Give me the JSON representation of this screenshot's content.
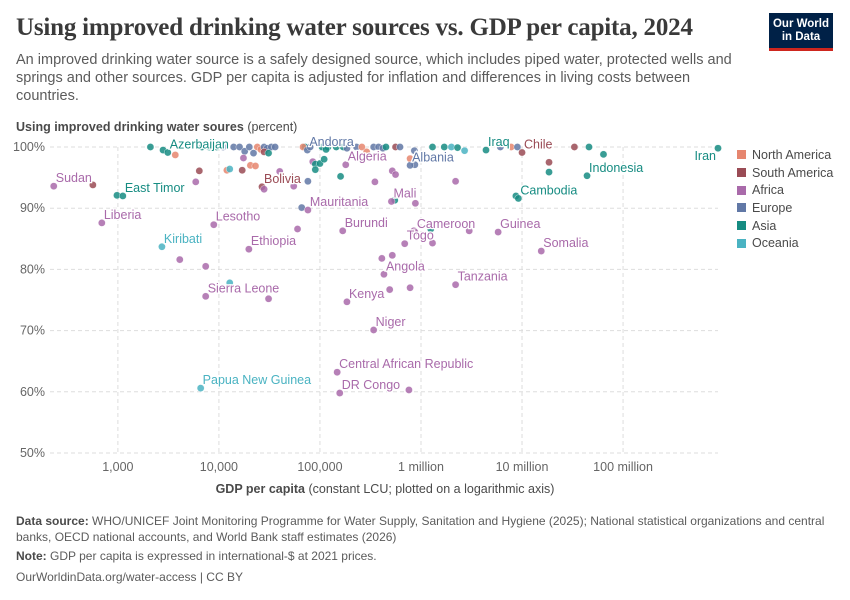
{
  "title": "Using improved drinking water sources vs. GDP per capita, 2024",
  "subtitle": "An improved drinking water source is a safely designed source, which includes piped water, protected wells and springs and other sources. GDP per capita is adjusted for inflation and differences in living costs between countries.",
  "logo": {
    "line1": "Our World",
    "line2": "in Data"
  },
  "footer": {
    "source_label": "Data source:",
    "source": "WHO/UNICEF Joint Monitoring Programme for Water Supply, Sanitation and Hygiene (2025); National statistical organizations and central banks, OECD national accounts, and World Bank staff estimates (2026)",
    "note_label": "Note:",
    "note": "GDP per capita is expressed in international-$ at 2021 prices.",
    "link": "OurWorldinData.org/water-access | CC BY"
  },
  "chart_data": {
    "type": "scatter",
    "ylabel_bold": "Using improved drinking water soures",
    "ylabel_unit": "(percent)",
    "xlabel_bold": "GDP per capita",
    "xlabel_rest": "(constant LCU; plotted on a logarithmic axis)",
    "xscale": "log",
    "xlim": [
      213,
      870000000
    ],
    "ylim": [
      50,
      100
    ],
    "xticks": [
      {
        "v": 1000,
        "label": "1,000"
      },
      {
        "v": 10000,
        "label": "10,000"
      },
      {
        "v": 100000,
        "label": "100,000"
      },
      {
        "v": 1000000,
        "label": "1 million"
      },
      {
        "v": 10000000,
        "label": "10 million"
      },
      {
        "v": 100000000,
        "label": "100 million"
      }
    ],
    "yticks": [
      {
        "v": 50,
        "label": "50%"
      },
      {
        "v": 60,
        "label": "60%"
      },
      {
        "v": 70,
        "label": "70%"
      },
      {
        "v": 80,
        "label": "80%"
      },
      {
        "v": 90,
        "label": "90%"
      },
      {
        "v": 100,
        "label": "100%"
      }
    ],
    "legend": [
      {
        "name": "North America",
        "color": "#e6866f"
      },
      {
        "name": "South America",
        "color": "#9a4b55"
      },
      {
        "name": "Africa",
        "color": "#a96aaa"
      },
      {
        "name": "Europe",
        "color": "#6178a6"
      },
      {
        "name": "Asia",
        "color": "#168c82"
      },
      {
        "name": "Oceania",
        "color": "#4ab3c2"
      }
    ],
    "points": [
      {
        "x": 232,
        "y": 93.6,
        "r": "Africa",
        "label": "Sudan"
      },
      {
        "x": 566,
        "y": 93.8,
        "r": "South America"
      },
      {
        "x": 980,
        "y": 92.1,
        "r": "Asia"
      },
      {
        "x": 1120,
        "y": 92.0,
        "r": "Asia",
        "label": "East Timor"
      },
      {
        "x": 694,
        "y": 87.6,
        "r": "Africa",
        "label": "Liberia"
      },
      {
        "x": 2730,
        "y": 83.7,
        "r": "Oceania",
        "label": "Kiribati"
      },
      {
        "x": 2100,
        "y": 100,
        "r": "Asia"
      },
      {
        "x": 2800,
        "y": 99.5,
        "r": "Asia"
      },
      {
        "x": 3120,
        "y": 99.1,
        "r": "Asia",
        "label": "Azerbaijan"
      },
      {
        "x": 3700,
        "y": 98.7,
        "r": "North America"
      },
      {
        "x": 4100,
        "y": 81.6,
        "r": "Africa"
      },
      {
        "x": 7400,
        "y": 80.5,
        "r": "Africa"
      },
      {
        "x": 5900,
        "y": 94.3,
        "r": "Africa"
      },
      {
        "x": 6400,
        "y": 96.1,
        "r": "South America"
      },
      {
        "x": 6800,
        "y": 100,
        "r": "Asia"
      },
      {
        "x": 8000,
        "y": 100,
        "r": "Asia"
      },
      {
        "x": 9500,
        "y": 100,
        "r": "Asia"
      },
      {
        "x": 11000,
        "y": 100,
        "r": "Europe"
      },
      {
        "x": 12000,
        "y": 96.2,
        "r": "North America"
      },
      {
        "x": 12800,
        "y": 96.4,
        "r": "Oceania"
      },
      {
        "x": 8900,
        "y": 87.3,
        "r": "Africa",
        "label": "Lesotho"
      },
      {
        "x": 19800,
        "y": 83.3,
        "r": "Africa",
        "label": "Ethiopia"
      },
      {
        "x": 7400,
        "y": 75.6,
        "r": "Africa",
        "label": "Sierra Leone"
      },
      {
        "x": 12800,
        "y": 77.8,
        "r": "Oceania"
      },
      {
        "x": 31000,
        "y": 75.2,
        "r": "Africa"
      },
      {
        "x": 14000,
        "y": 100,
        "r": "Europe"
      },
      {
        "x": 16000,
        "y": 100,
        "r": "Europe"
      },
      {
        "x": 18000,
        "y": 99.3,
        "r": "Europe"
      },
      {
        "x": 20000,
        "y": 100,
        "r": "Europe"
      },
      {
        "x": 22000,
        "y": 99.0,
        "r": "Europe"
      },
      {
        "x": 24000,
        "y": 100,
        "r": "North America"
      },
      {
        "x": 26000,
        "y": 99.6,
        "r": "North America"
      },
      {
        "x": 28000,
        "y": 100,
        "r": "Europe"
      },
      {
        "x": 30000,
        "y": 99.8,
        "r": "Europe"
      },
      {
        "x": 33000,
        "y": 100,
        "r": "Europe"
      },
      {
        "x": 36000,
        "y": 100,
        "r": "Europe"
      },
      {
        "x": 17500,
        "y": 98.2,
        "r": "Africa"
      },
      {
        "x": 20500,
        "y": 97.0,
        "r": "North America"
      },
      {
        "x": 17000,
        "y": 96.2,
        "r": "South America"
      },
      {
        "x": 23000,
        "y": 96.9,
        "r": "North America"
      },
      {
        "x": 28000,
        "y": 99.2,
        "r": "South America"
      },
      {
        "x": 31000,
        "y": 99.0,
        "r": "Asia"
      },
      {
        "x": 40000,
        "y": 96.0,
        "r": "Africa"
      },
      {
        "x": 26700,
        "y": 93.5,
        "r": "South America",
        "label": "Bolivia"
      },
      {
        "x": 28000,
        "y": 93.1,
        "r": "Africa"
      },
      {
        "x": 55000,
        "y": 93.6,
        "r": "Africa"
      },
      {
        "x": 60000,
        "y": 86.6,
        "r": "Africa"
      },
      {
        "x": 71000,
        "y": 100,
        "r": "Asia"
      },
      {
        "x": 68000,
        "y": 100,
        "r": "North America"
      },
      {
        "x": 75000,
        "y": 99.5,
        "r": "Europe",
        "label": "Andorra"
      },
      {
        "x": 80000,
        "y": 100,
        "r": "Europe"
      },
      {
        "x": 85000,
        "y": 97.6,
        "r": "Africa"
      },
      {
        "x": 90000,
        "y": 97.2,
        "r": "Asia"
      },
      {
        "x": 90000,
        "y": 96.3,
        "r": "Asia"
      },
      {
        "x": 100000,
        "y": 97.3,
        "r": "Asia"
      },
      {
        "x": 105000,
        "y": 100,
        "r": "Asia"
      },
      {
        "x": 120000,
        "y": 100,
        "r": "Asia"
      },
      {
        "x": 110000,
        "y": 98.0,
        "r": "Asia"
      },
      {
        "x": 115000,
        "y": 99.6,
        "r": "Asia"
      },
      {
        "x": 76000,
        "y": 94.4,
        "r": "Europe"
      },
      {
        "x": 66000,
        "y": 90.1,
        "r": "Europe"
      },
      {
        "x": 76000,
        "y": 89.7,
        "r": "Africa",
        "label": "Mauritania"
      },
      {
        "x": 160000,
        "y": 95.2,
        "r": "Asia"
      },
      {
        "x": 145000,
        "y": 100,
        "r": "Asia"
      },
      {
        "x": 170000,
        "y": 100,
        "r": "Asia"
      },
      {
        "x": 185000,
        "y": 99.8,
        "r": "Europe"
      },
      {
        "x": 180000,
        "y": 97.1,
        "r": "Africa",
        "label": "Algeria"
      },
      {
        "x": 230000,
        "y": 100,
        "r": "Europe"
      },
      {
        "x": 260000,
        "y": 100,
        "r": "North America"
      },
      {
        "x": 290000,
        "y": 99.2,
        "r": "North America"
      },
      {
        "x": 340000,
        "y": 100,
        "r": "Europe"
      },
      {
        "x": 380000,
        "y": 100,
        "r": "Europe"
      },
      {
        "x": 420000,
        "y": 99.8,
        "r": "Europe"
      },
      {
        "x": 450000,
        "y": 100,
        "r": "Asia"
      },
      {
        "x": 560000,
        "y": 100,
        "r": "South America"
      },
      {
        "x": 620000,
        "y": 100,
        "r": "Europe"
      },
      {
        "x": 350000,
        "y": 94.3,
        "r": "Africa"
      },
      {
        "x": 520000,
        "y": 96.1,
        "r": "Africa"
      },
      {
        "x": 560000,
        "y": 95.5,
        "r": "Africa"
      },
      {
        "x": 168000,
        "y": 86.3,
        "r": "Africa",
        "label": "Burundi"
      },
      {
        "x": 185000,
        "y": 74.7,
        "r": "Africa",
        "label": "Kenya"
      },
      {
        "x": 340000,
        "y": 70.1,
        "r": "Africa",
        "label": "Niger"
      },
      {
        "x": 148000,
        "y": 63.2,
        "r": "Africa",
        "label": "Central African Republic"
      },
      {
        "x": 157000,
        "y": 59.8,
        "r": "Africa",
        "label": "DR Congo"
      },
      {
        "x": 6600,
        "y": 60.6,
        "r": "Oceania",
        "label": "Papua New Guinea"
      },
      {
        "x": 760000,
        "y": 60.3,
        "r": "Africa"
      },
      {
        "x": 550000,
        "y": 91.3,
        "r": "Asia"
      },
      {
        "x": 510000,
        "y": 91.1,
        "r": "Africa",
        "label": "Mali"
      },
      {
        "x": 880000,
        "y": 90.8,
        "r": "Africa"
      },
      {
        "x": 850000,
        "y": 86.3,
        "r": "Africa"
      },
      {
        "x": 870000,
        "y": 86.1,
        "r": "Africa",
        "label": "Cameroon"
      },
      {
        "x": 1250000,
        "y": 86.6,
        "r": "Asia"
      },
      {
        "x": 690000,
        "y": 84.2,
        "r": "Africa",
        "label": "Togo"
      },
      {
        "x": 1300000,
        "y": 84.3,
        "r": "Africa"
      },
      {
        "x": 520000,
        "y": 82.3,
        "r": "Africa"
      },
      {
        "x": 410000,
        "y": 81.8,
        "r": "Africa"
      },
      {
        "x": 430000,
        "y": 79.2,
        "r": "Africa",
        "label": "Angola"
      },
      {
        "x": 490000,
        "y": 76.7,
        "r": "Africa"
      },
      {
        "x": 780000,
        "y": 77.0,
        "r": "Africa"
      },
      {
        "x": 2200000,
        "y": 77.5,
        "r": "Africa",
        "label": "Tanzania"
      },
      {
        "x": 860000,
        "y": 99.4,
        "r": "Europe"
      },
      {
        "x": 780000,
        "y": 98.1,
        "r": "North America"
      },
      {
        "x": 870000,
        "y": 97.1,
        "r": "Europe"
      },
      {
        "x": 780000,
        "y": 97.0,
        "r": "Europe",
        "label": "Albania"
      },
      {
        "x": 1300000,
        "y": 100,
        "r": "Asia"
      },
      {
        "x": 1700000,
        "y": 100,
        "r": "Asia"
      },
      {
        "x": 2000000,
        "y": 100,
        "r": "Oceania"
      },
      {
        "x": 2300000,
        "y": 99.9,
        "r": "Asia"
      },
      {
        "x": 2700000,
        "y": 99.4,
        "r": "Oceania"
      },
      {
        "x": 2200000,
        "y": 94.4,
        "r": "Africa"
      },
      {
        "x": 3000000,
        "y": 86.3,
        "r": "Africa"
      },
      {
        "x": 4400000,
        "y": 99.5,
        "r": "Asia",
        "label": "Iraq"
      },
      {
        "x": 6100000,
        "y": 100,
        "r": "Europe"
      },
      {
        "x": 7800000,
        "y": 100,
        "r": "North America"
      },
      {
        "x": 9000000,
        "y": 100,
        "r": "Europe"
      },
      {
        "x": 5800000,
        "y": 86.1,
        "r": "Africa",
        "label": "Guinea"
      },
      {
        "x": 10000000,
        "y": 99.1,
        "r": "South America",
        "label": "Chile"
      },
      {
        "x": 18500000,
        "y": 97.5,
        "r": "South America"
      },
      {
        "x": 18500000,
        "y": 95.9,
        "r": "Asia"
      },
      {
        "x": 8700000,
        "y": 92.0,
        "r": "Asia"
      },
      {
        "x": 9200000,
        "y": 91.6,
        "r": "Asia",
        "label": "Cambodia"
      },
      {
        "x": 15500000,
        "y": 83.0,
        "r": "Africa",
        "label": "Somalia"
      },
      {
        "x": 33000000,
        "y": 100,
        "r": "South America"
      },
      {
        "x": 46000000,
        "y": 100,
        "r": "Asia"
      },
      {
        "x": 64000000,
        "y": 98.8,
        "r": "Asia"
      },
      {
        "x": 44000000,
        "y": 95.3,
        "r": "Asia",
        "label": "Indonesia"
      },
      {
        "x": 870000000,
        "y": 99.8,
        "r": "Asia",
        "label": "Iran"
      }
    ]
  }
}
